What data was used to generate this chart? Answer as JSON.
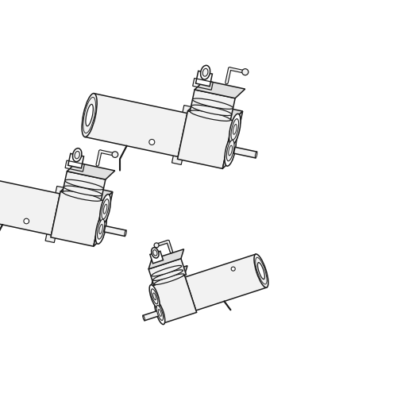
{
  "background_color": "#ffffff",
  "line_color": "#1a1a1a",
  "fill_white": "#ffffff",
  "fill_light": "#f2f2f2",
  "fill_mid": "#e0e0e0",
  "figsize": [
    5.0,
    5.0
  ],
  "dpi": 100,
  "lw": 1.1
}
